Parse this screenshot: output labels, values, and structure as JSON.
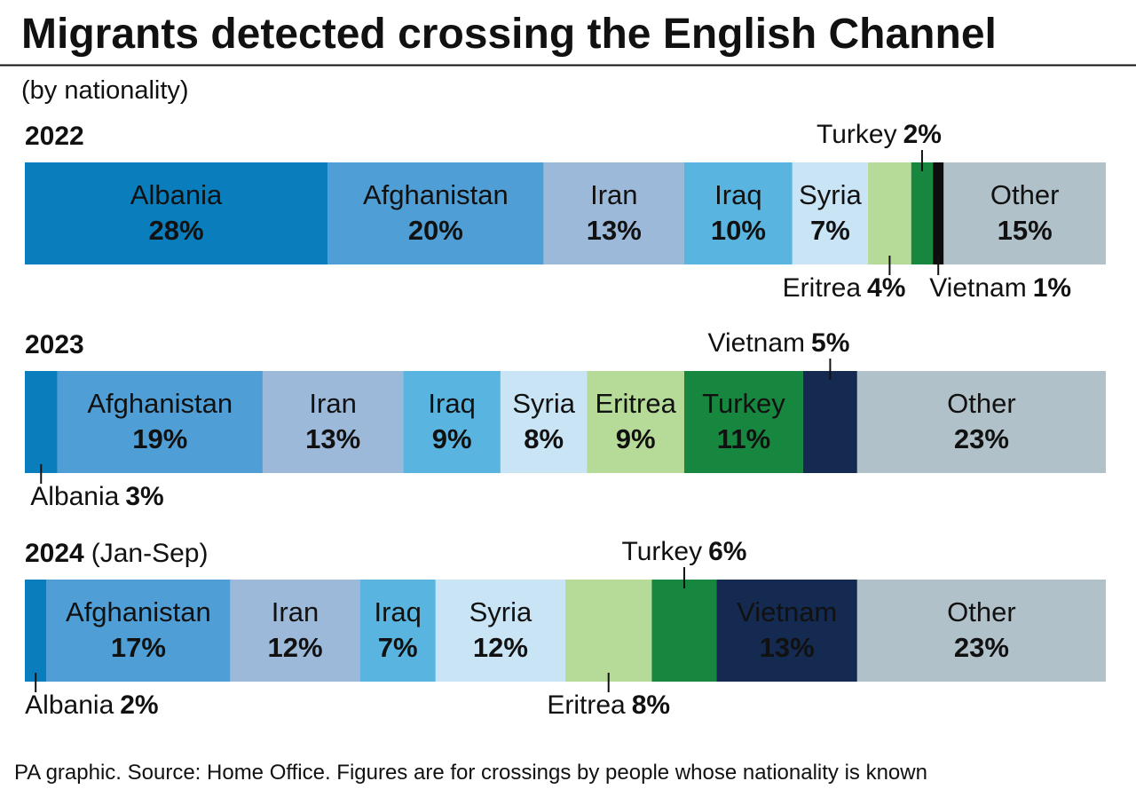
{
  "title": "Migrants detected crossing the English Channel",
  "subtitle": "(by nationality)",
  "source": "PA graphic. Source: Home Office. Figures are for crossings by people whose nationality is known",
  "chart_data": [
    {
      "type": "stacked_bar",
      "title": "2022",
      "categories": [
        "Albania",
        "Afghanistan",
        "Iran",
        "Iraq",
        "Syria",
        "Eritrea",
        "Turkey",
        "Vietnam",
        "Other"
      ],
      "values": [
        28,
        20,
        13,
        10,
        7,
        4,
        2,
        1,
        15
      ],
      "value_labels": [
        "28%",
        "20%",
        "13%",
        "10%",
        "7%",
        "4%",
        "2%",
        "1%",
        "15%"
      ],
      "colors": [
        "#0a7dbd",
        "#4f9fd6",
        "#9db9da",
        "#59b5e0",
        "#c9e4f4",
        "#b6da98",
        "#17873f",
        "#0d0d0d",
        "#b0c1c9"
      ]
    },
    {
      "type": "stacked_bar",
      "title": "2023",
      "categories": [
        "Albania",
        "Afghanistan",
        "Iran",
        "Iraq",
        "Syria",
        "Eritrea",
        "Turkey",
        "Vietnam",
        "Other"
      ],
      "values": [
        3,
        19,
        13,
        9,
        8,
        9,
        11,
        5,
        23
      ],
      "value_labels": [
        "3%",
        "19%",
        "13%",
        "9%",
        "8%",
        "9%",
        "11%",
        "5%",
        "23%"
      ],
      "colors": [
        "#0a7dbd",
        "#4f9fd6",
        "#9db9da",
        "#59b5e0",
        "#c9e4f4",
        "#b6da98",
        "#17873f",
        "#142a50",
        "#b0c1c9"
      ]
    },
    {
      "type": "stacked_bar",
      "title": "2024",
      "subtitle": "(Jan-Sep)",
      "categories": [
        "Albania",
        "Afghanistan",
        "Iran",
        "Iraq",
        "Syria",
        "Eritrea",
        "Turkey",
        "Vietnam",
        "Other"
      ],
      "values": [
        2,
        17,
        12,
        7,
        12,
        8,
        6,
        13,
        23
      ],
      "value_labels": [
        "2%",
        "17%",
        "12%",
        "7%",
        "12%",
        "8%",
        "6%",
        "13%",
        "23%"
      ],
      "colors": [
        "#0a7dbd",
        "#4f9fd6",
        "#9db9da",
        "#59b5e0",
        "#c9e4f4",
        "#b6da98",
        "#17873f",
        "#142a50",
        "#b0c1c9"
      ]
    }
  ]
}
